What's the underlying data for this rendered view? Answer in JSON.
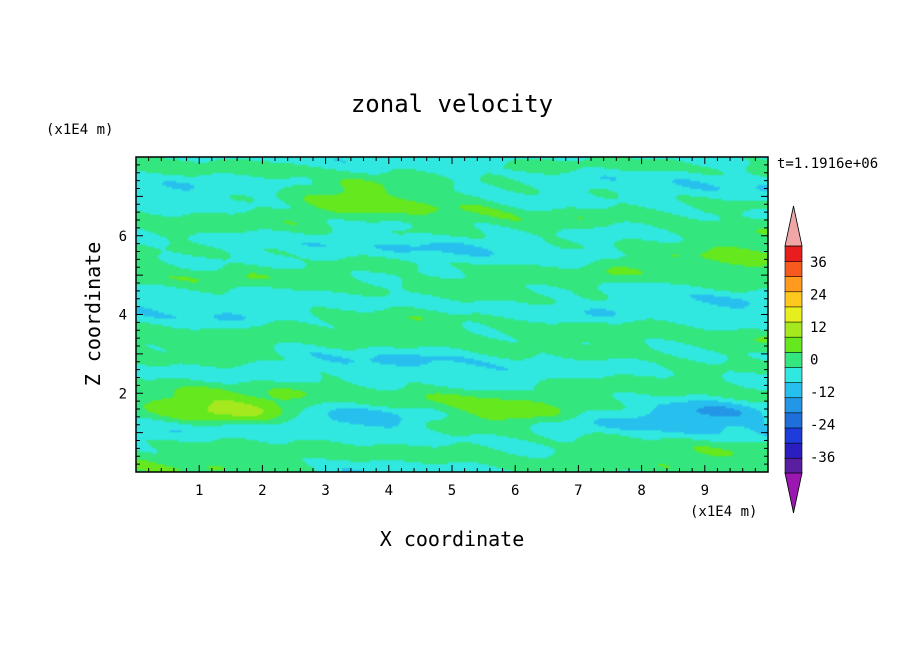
{
  "chart_data": {
    "type": "heatmap",
    "title": "zonal velocity",
    "xlabel": "X coordinate",
    "ylabel": "Z coordinate",
    "x_unit": "(x1E4 m)",
    "y_unit": "(x1E4 m)",
    "time_label": "t=1.1916e+06",
    "xlim": [
      0,
      10
    ],
    "ylim": [
      0,
      8
    ],
    "x_ticks": [
      "1",
      "2",
      "3",
      "4",
      "5",
      "6",
      "7",
      "8",
      "9"
    ],
    "y_ticks": [
      "2",
      "4",
      "6"
    ],
    "colorbar": {
      "tick_labels": [
        "36",
        "24",
        "12",
        "0",
        "-12",
        "-24",
        "-36"
      ],
      "levels": [
        -42,
        -36,
        -30,
        -24,
        -18,
        -12,
        -6,
        0,
        6,
        12,
        18,
        24,
        30,
        36,
        42
      ],
      "under_color": "#9a17b0",
      "over_color": "#f0a6a6",
      "colors": [
        "#5a1ea0",
        "#2a1ec0",
        "#1e3cdc",
        "#1e6edc",
        "#2396e6",
        "#27c0ee",
        "#30e8e0",
        "#33e67d",
        "#66e81e",
        "#a6e81e",
        "#e6ee1e",
        "#ffc81e",
        "#ff9a1e",
        "#f65a1e",
        "#e81e1e"
      ]
    },
    "grid": false,
    "features": [
      {
        "desc": "yellow jet",
        "x": 1.3,
        "z": 1.6,
        "value": 14
      },
      {
        "desc": "cyan trough",
        "x": 3.7,
        "z": 1.35,
        "value": -9
      },
      {
        "desc": "cyan trough",
        "x": 9.0,
        "z": 1.5,
        "value": -8
      },
      {
        "desc": "yellow-green jet",
        "x": 5.6,
        "z": 1.45,
        "value": 7
      },
      {
        "desc": "yellow band",
        "x": 3.5,
        "z": 7.2,
        "value": 8
      },
      {
        "desc": "yellow band",
        "x": 9.6,
        "z": 5.75,
        "value": 8
      }
    ]
  }
}
